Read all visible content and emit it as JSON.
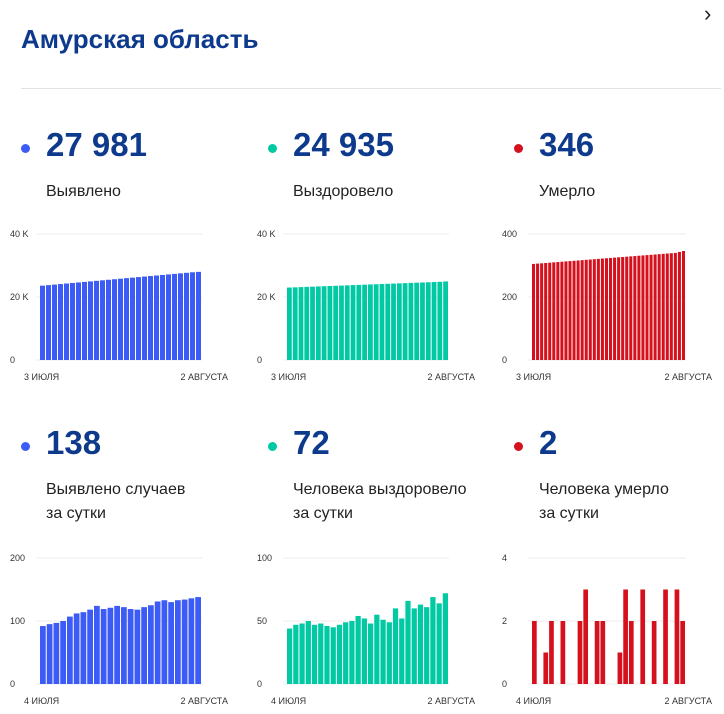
{
  "header": {
    "title": "Амурская область"
  },
  "colors": {
    "detected": "#3d5cf5",
    "recovered": "#00c9a4",
    "died": "#d6111e"
  },
  "stats": [
    {
      "id": "detected",
      "value": "27 981",
      "label_lines": [
        "Выявлено"
      ]
    },
    {
      "id": "recovered",
      "value": "24 935",
      "label_lines": [
        "Выздоровело"
      ]
    },
    {
      "id": "died",
      "value": "346",
      "label_lines": [
        "Умерло"
      ]
    },
    {
      "id": "daily-detected",
      "value": "138",
      "label_lines": [
        "Выявлено случаев",
        "за сутки"
      ]
    },
    {
      "id": "daily-recovered",
      "value": "72",
      "label_lines": [
        "Человека выздоровело",
        "за сутки"
      ]
    },
    {
      "id": "daily-died",
      "value": "2",
      "label_lines": [
        "Человека умерло",
        "за сутки"
      ]
    }
  ],
  "chart_data": [
    {
      "type": "bar",
      "series_key": "detected",
      "ylim": [
        0,
        40000
      ],
      "yticks": [
        0,
        20000,
        40000
      ],
      "ytick_labels": [
        "0",
        "20 K",
        "40 K"
      ],
      "x_start_label": "3 ИЮЛЯ",
      "x_end_label": "2 АВГУСТА",
      "values": [
        23600,
        23770,
        23940,
        24110,
        24280,
        24450,
        24620,
        24790,
        24960,
        25130,
        25300,
        25470,
        25640,
        25810,
        25980,
        26150,
        26320,
        26490,
        26660,
        26830,
        27000,
        27170,
        27340,
        27510,
        27680,
        27850,
        27981
      ]
    },
    {
      "type": "bar",
      "series_key": "recovered",
      "ylim": [
        0,
        40000
      ],
      "yticks": [
        0,
        20000,
        40000
      ],
      "ytick_labels": [
        "0",
        "20 K",
        "40 K"
      ],
      "x_start_label": "3 ИЮЛЯ",
      "x_end_label": "2 АВГУСТА",
      "values": [
        23000,
        23070,
        23140,
        23210,
        23280,
        23350,
        23420,
        23490,
        23560,
        23630,
        23700,
        23770,
        23840,
        23910,
        23980,
        24050,
        24120,
        24190,
        24260,
        24330,
        24400,
        24470,
        24540,
        24610,
        24680,
        24750,
        24820,
        24935
      ]
    },
    {
      "type": "bar",
      "series_key": "died",
      "ylim": [
        0,
        400
      ],
      "yticks": [
        0,
        200,
        400
      ],
      "ytick_labels": [
        "0",
        "200",
        "400"
      ],
      "x_start_label": "3 ИЮЛЯ",
      "x_end_label": "2 АВГУСТА",
      "values": [
        305,
        306,
        307,
        308,
        309,
        310,
        311,
        312,
        313,
        314,
        315,
        316,
        317,
        318,
        319,
        320,
        321,
        322,
        323,
        324,
        325,
        326,
        327,
        328,
        329,
        330,
        331,
        332,
        333,
        334,
        335,
        336,
        337,
        338,
        339,
        340,
        343,
        346
      ]
    },
    {
      "type": "bar",
      "series_key": "detected",
      "ylim": [
        0,
        200
      ],
      "yticks": [
        0,
        100,
        200
      ],
      "ytick_labels": [
        "0",
        "100",
        "200"
      ],
      "x_start_label": "4 ИЮЛЯ",
      "x_end_label": "2 АВГУСТА",
      "values": [
        92,
        95,
        97,
        100,
        107,
        112,
        114,
        118,
        124,
        119,
        121,
        124,
        122,
        119,
        118,
        122,
        125,
        131,
        133,
        130,
        133,
        134,
        136,
        138
      ]
    },
    {
      "type": "bar",
      "series_key": "recovered",
      "ylim": [
        0,
        100
      ],
      "yticks": [
        0,
        50,
        100
      ],
      "ytick_labels": [
        "0",
        "50",
        "100"
      ],
      "x_start_label": "4 ИЮЛЯ",
      "x_end_label": "2 АВГУСТА",
      "values": [
        44,
        47,
        48,
        50,
        47,
        48,
        46,
        45,
        47,
        49,
        50,
        54,
        52,
        48,
        55,
        51,
        49,
        60,
        52,
        66,
        60,
        63,
        61,
        69,
        64,
        72
      ]
    },
    {
      "type": "bar",
      "series_key": "died",
      "ylim": [
        0,
        4
      ],
      "yticks": [
        0,
        2,
        4
      ],
      "ytick_labels": [
        "0",
        "2",
        "4"
      ],
      "x_start_label": "4 ИЮЛЯ",
      "x_end_label": "2 АВГУСТА",
      "values": [
        2,
        0,
        1,
        2,
        0,
        2,
        0,
        0,
        2,
        3,
        0,
        2,
        2,
        0,
        0,
        1,
        3,
        2,
        0,
        3,
        0,
        2,
        0,
        3,
        0,
        3,
        2
      ]
    }
  ]
}
